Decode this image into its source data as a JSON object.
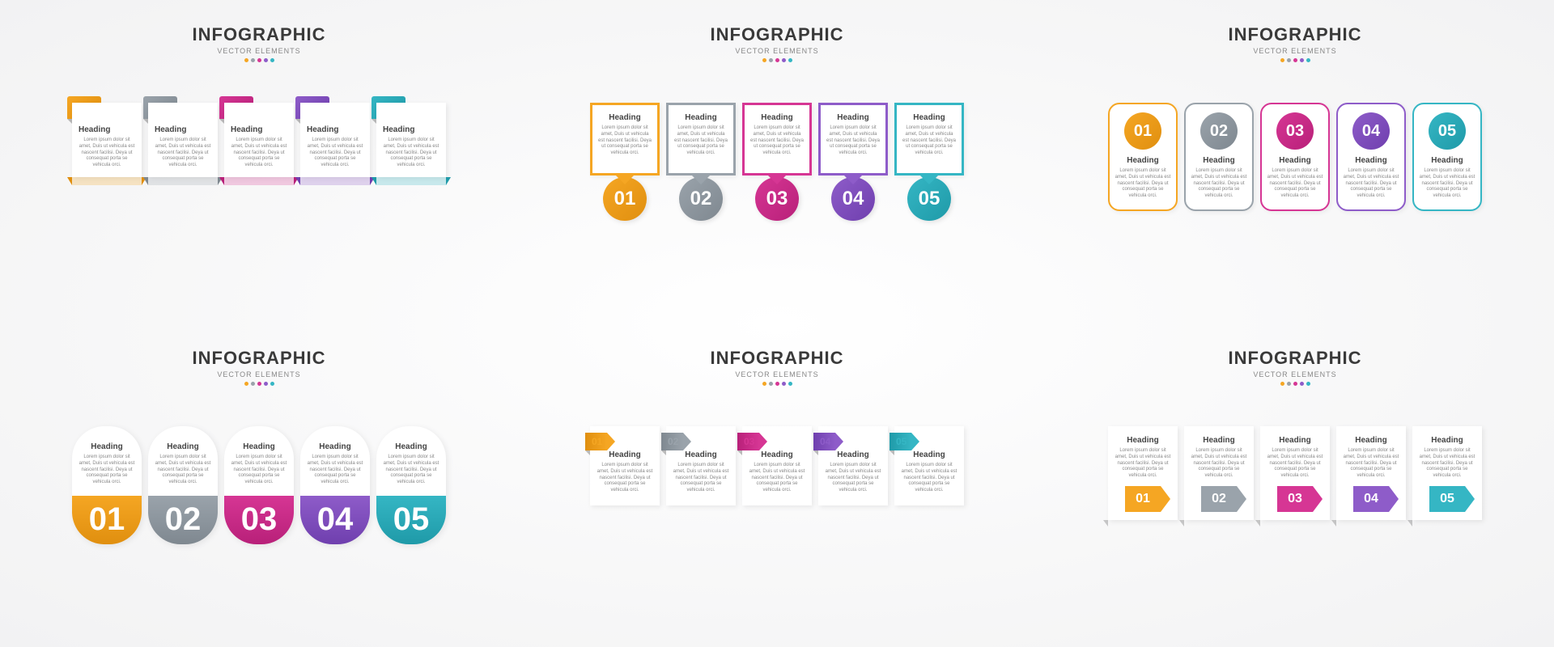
{
  "common": {
    "title": "INFOGRAPHIC",
    "subtitle": "VECTOR ELEMENTS",
    "heading": "Heading",
    "body": "Lorem ipsum dolor sit amet, Duis ut vehicula est nascent facilisi. Deya ut consequat porta se vehicula orci.",
    "numbers": [
      "01",
      "02",
      "03",
      "04",
      "05"
    ],
    "colors": [
      "#f5a623",
      "#9aa3ab",
      "#d63694",
      "#8e5cc9",
      "#35b6c4"
    ],
    "colors_dark": [
      "#e08f0f",
      "#7f8890",
      "#b82079",
      "#6f3fae",
      "#1f9aa8"
    ],
    "title_color": "#3a3a3a",
    "title_fontsize": 22,
    "subtitle_fontsize": 9,
    "heading_fontsize": 10,
    "body_fontsize": 6,
    "background": "#f4f4f5"
  },
  "panels": [
    {
      "id": "style1",
      "type": "ribbon-card"
    },
    {
      "id": "style2",
      "type": "border-box-circle"
    },
    {
      "id": "style3",
      "type": "rounded-border-circle"
    },
    {
      "id": "style4",
      "type": "pill-bignum"
    },
    {
      "id": "style5",
      "type": "arrow-tab-card"
    },
    {
      "id": "style6",
      "type": "chevron-badge-card"
    }
  ]
}
